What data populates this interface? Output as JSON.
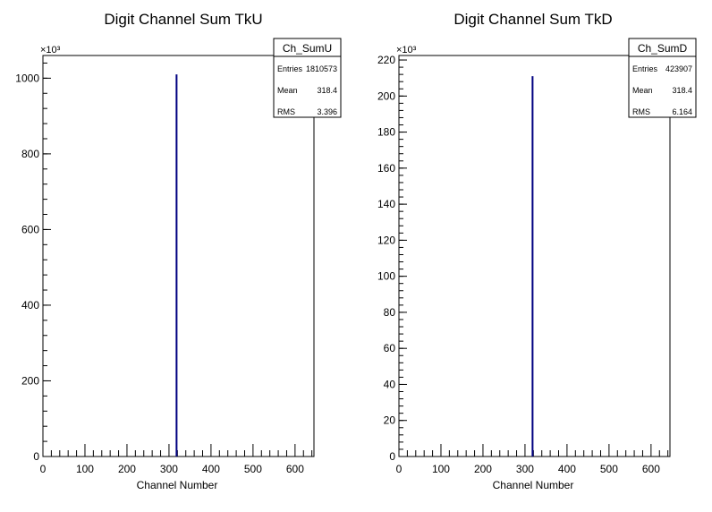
{
  "chart_data": [
    {
      "type": "bar",
      "title": "Digit Channel Sum TkU",
      "xlabel": "Channel Number",
      "ylabel": "",
      "y_multiplier_label": "×10³",
      "xlim": [
        0,
        645
      ],
      "ylim": [
        0,
        1060
      ],
      "x_ticks": [
        0,
        100,
        200,
        300,
        400,
        500,
        600
      ],
      "y_ticks": [
        0,
        200,
        400,
        600,
        800,
        1000
      ],
      "grid": false,
      "series": [
        {
          "color": "#000080",
          "x": [
            318
          ],
          "values": [
            1010
          ]
        }
      ],
      "stats_box": {
        "name": "Ch_SumU",
        "rows": [
          {
            "label": "Entries",
            "value": "1810573"
          },
          {
            "label": "Mean",
            "value": "318.4"
          },
          {
            "label": "RMS",
            "value": "3.396"
          }
        ]
      }
    },
    {
      "type": "bar",
      "title": "Digit Channel Sum TkD",
      "xlabel": "Channel Number",
      "ylabel": "",
      "y_multiplier_label": "×10³",
      "xlim": [
        0,
        645
      ],
      "ylim": [
        0,
        222.5
      ],
      "x_ticks": [
        0,
        100,
        200,
        300,
        400,
        500,
        600
      ],
      "y_ticks": [
        0,
        20,
        40,
        60,
        80,
        100,
        120,
        140,
        160,
        180,
        200,
        220
      ],
      "grid": false,
      "series": [
        {
          "color": "#000080",
          "x": [
            318
          ],
          "values": [
            211
          ]
        }
      ],
      "stats_box": {
        "name": "Ch_SumD",
        "rows": [
          {
            "label": "Entries",
            "value": "423907"
          },
          {
            "label": "Mean",
            "value": "318.4"
          },
          {
            "label": "RMS",
            "value": "6.164"
          }
        ]
      }
    }
  ]
}
